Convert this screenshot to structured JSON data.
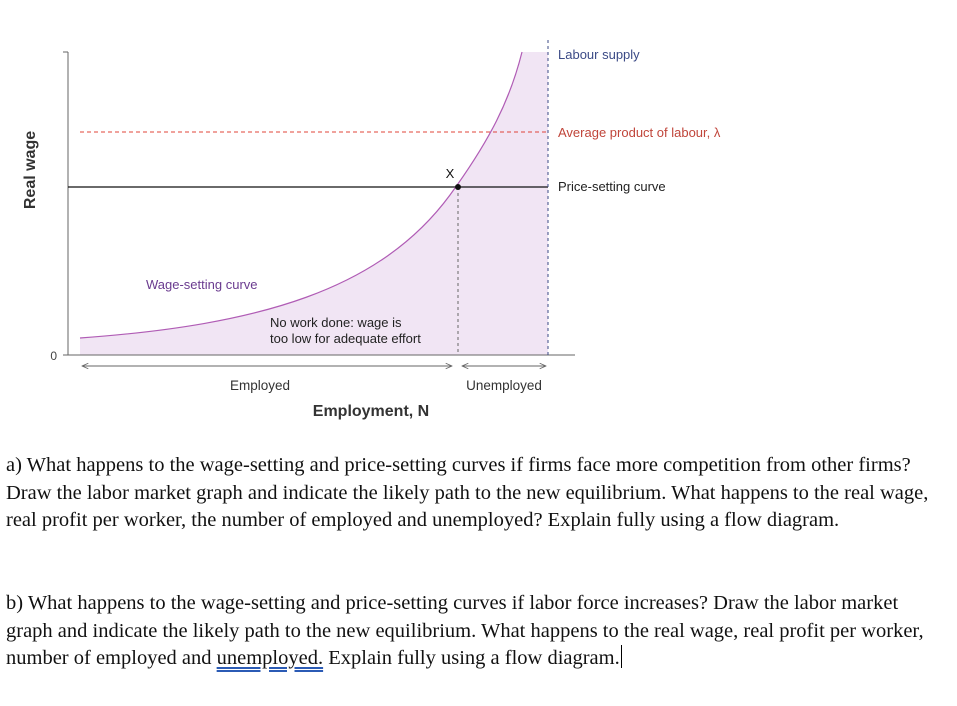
{
  "chart_data": {
    "type": "line",
    "ylabel": "Real wage",
    "xlabel": "Employment, N",
    "yticks": [
      "0"
    ],
    "curves": [
      {
        "name": "Wage-setting curve",
        "kind": "convex-upward"
      },
      {
        "name": "Price-setting curve",
        "kind": "horizontal"
      },
      {
        "name": "Average product of labour, λ",
        "kind": "horizontal-dashed"
      },
      {
        "name": "Labour supply",
        "kind": "vertical-dashed"
      }
    ],
    "point_label": "X",
    "annotations": {
      "no_work": [
        "No work done: wage is",
        "too low for adequate effort"
      ],
      "employed": "Employed",
      "unemployed": "Unemployed"
    },
    "colors": {
      "wage_curve": "#b05cb5",
      "shade": "#f1e5f4",
      "apl_line": "#e0443a",
      "axis": "#555555",
      "label_purple": "#6a3b8f",
      "label_blue": "#3b4a86"
    }
  },
  "questions": {
    "a": "a) What happens to the wage-setting and price-setting curves if firms face more competition from other firms? Draw the labor market graph and indicate the likely path to the new equilibrium. What happens to the real wage, real profit per worker, the number of employed and unemployed? Explain fully using a flow diagram.",
    "b_pre": "b) What happens to the wage-setting and price-setting curves if labor force increases? Draw the labor market graph and indicate the likely path to the new equilibrium. What happens to the real wage, real profit per worker, number of employed and ",
    "b_underlined": "unemployed.",
    "b_post": " Explain fully using a flow diagram."
  }
}
